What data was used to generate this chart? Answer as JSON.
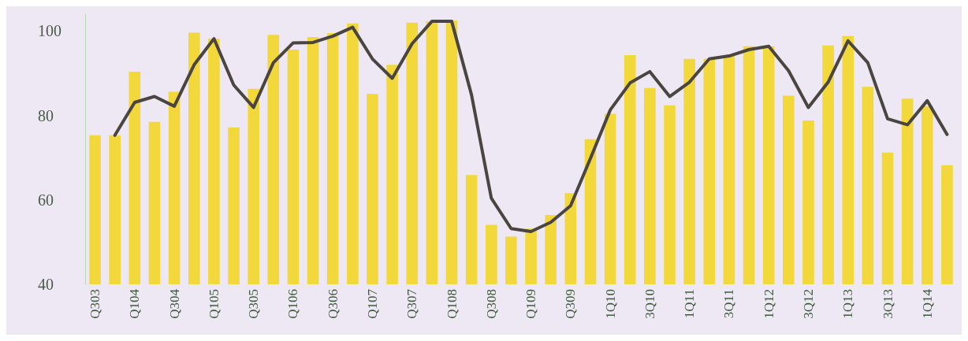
{
  "chart_data": {
    "type": "bar",
    "categories": [
      "Q303",
      null,
      "Q104",
      null,
      "Q304",
      null,
      "Q105",
      null,
      "Q305",
      null,
      "Q106",
      null,
      "Q306",
      null,
      "Q107",
      null,
      "Q307",
      null,
      "Q108",
      null,
      "Q308",
      null,
      "Q109",
      null,
      "Q309",
      null,
      "1Q10",
      null,
      "3Q10",
      null,
      "1Q11",
      null,
      "3Q11",
      null,
      "1Q12",
      null,
      "3Q12",
      null,
      "1Q13",
      null,
      "3Q13",
      null,
      "1Q14",
      null
    ],
    "series": [
      {
        "color": "#f2d83b",
        "values": [
          75.3,
          75.3,
          90.4,
          78.5,
          85.6,
          99.6,
          98.2,
          77.2,
          86.3,
          99.1,
          95.6,
          98.6,
          99.5,
          101.8,
          85.1,
          92,
          102,
          102.3,
          102.5,
          65.9,
          54.1,
          51.3,
          53.2,
          56.4,
          61.6,
          74.4,
          80.4,
          94.3,
          86.5,
          82.4,
          93.4,
          93.4,
          94.1,
          96.4,
          96.4,
          84.7,
          78.8,
          96.6,
          98.8,
          86.8,
          71.2,
          84,
          82.2,
          68.2
        ]
      },
      {
        "type": "line",
        "color": "#4a4540",
        "values": [
          null,
          75.3,
          83.1,
          84.5,
          82.2,
          92,
          98.2,
          87.2,
          81.9,
          92.5,
          97.2,
          97.3,
          98.8,
          100.9,
          93.4,
          88.8,
          97,
          102.3,
          102.3,
          84.9,
          60.4,
          53.2,
          52.5,
          54.7,
          58.6,
          69.8,
          81.3,
          87.7,
          90.4,
          84.5,
          87.9,
          93.4,
          94.1,
          95.6,
          96.4,
          90.6,
          81.9,
          87.9,
          97.7,
          92.5,
          79.2,
          77.8,
          83.5,
          75.5
        ]
      }
    ],
    "ylim": [
      40,
      104
    ],
    "yticks": [
      40,
      60,
      80,
      100
    ],
    "grid": false,
    "marker": "none",
    "line_style": "solid"
  }
}
